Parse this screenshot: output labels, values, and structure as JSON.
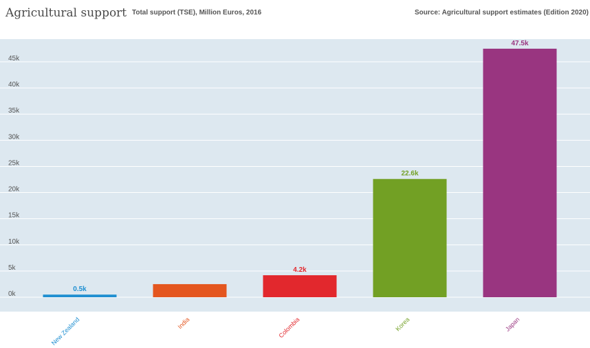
{
  "header": {
    "title": "Agricultural support",
    "subtitle": "Total support (TSE), Million Euros, 2016",
    "source": "Source: Agricultural support estimates (Edition 2020)"
  },
  "chart_data": {
    "type": "bar",
    "title": "Agricultural support",
    "subtitle": "Total support (TSE), Million Euros, 2016",
    "categories": [
      "New Zealand",
      "India",
      "Colombia",
      "Korea",
      "Japan"
    ],
    "values": [
      500,
      2500,
      4200,
      22600,
      47500
    ],
    "value_labels": [
      "0.5k",
      "",
      "4.2k",
      "22.6k",
      "47.5k"
    ],
    "colors": [
      "#1f8fd1",
      "#e4561f",
      "#e2282d",
      "#72a024",
      "#993580"
    ],
    "ylim": [
      0,
      50000
    ],
    "yticks": [
      0,
      5000,
      10000,
      15000,
      20000,
      25000,
      30000,
      35000,
      40000,
      45000
    ],
    "ytick_labels": [
      "0k",
      "5k",
      "10k",
      "15k",
      "20k",
      "25k",
      "30k",
      "35k",
      "40k",
      "45k"
    ],
    "grid": true,
    "xlabel": "",
    "ylabel": "",
    "plot_background": "#dde8f0"
  }
}
